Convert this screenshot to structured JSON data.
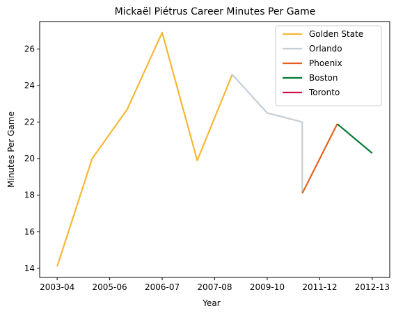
{
  "chart_data": {
    "type": "line",
    "title": "Mickaël Piétrus Career Minutes Per Game",
    "xlabel": "Year",
    "ylabel": "Minutes Per Game",
    "x_ticks": [
      "2003-04",
      "2005-06",
      "2006-07",
      "2007-08",
      "2009-10",
      "2011-12",
      "2012-13"
    ],
    "y_ticks": [
      14,
      16,
      18,
      20,
      22,
      24,
      26
    ],
    "xlim": [
      -0.5,
      9.5
    ],
    "ylim": [
      13.5,
      27.5
    ],
    "grid": false,
    "legend_position": "top-right",
    "series": [
      {
        "name": "Golden State",
        "color": "#f7b733",
        "x": [
          0,
          1,
          2,
          3,
          4,
          5
        ],
        "y": [
          14.1,
          20.0,
          22.7,
          26.9,
          19.9,
          24.6
        ]
      },
      {
        "name": "Orlando",
        "color": "#c4ced4",
        "x": [
          5,
          6,
          7,
          7
        ],
        "y": [
          24.6,
          22.5,
          22.0,
          18.1
        ]
      },
      {
        "name": "Phoenix",
        "color": "#e56020",
        "x": [
          7,
          8
        ],
        "y": [
          18.1,
          21.9
        ]
      },
      {
        "name": "Boston",
        "color": "#007a33",
        "x": [
          8,
          9
        ],
        "y": [
          21.9,
          20.3
        ]
      },
      {
        "name": "Toronto",
        "color": "#ce1141",
        "x": [],
        "y": []
      }
    ]
  }
}
